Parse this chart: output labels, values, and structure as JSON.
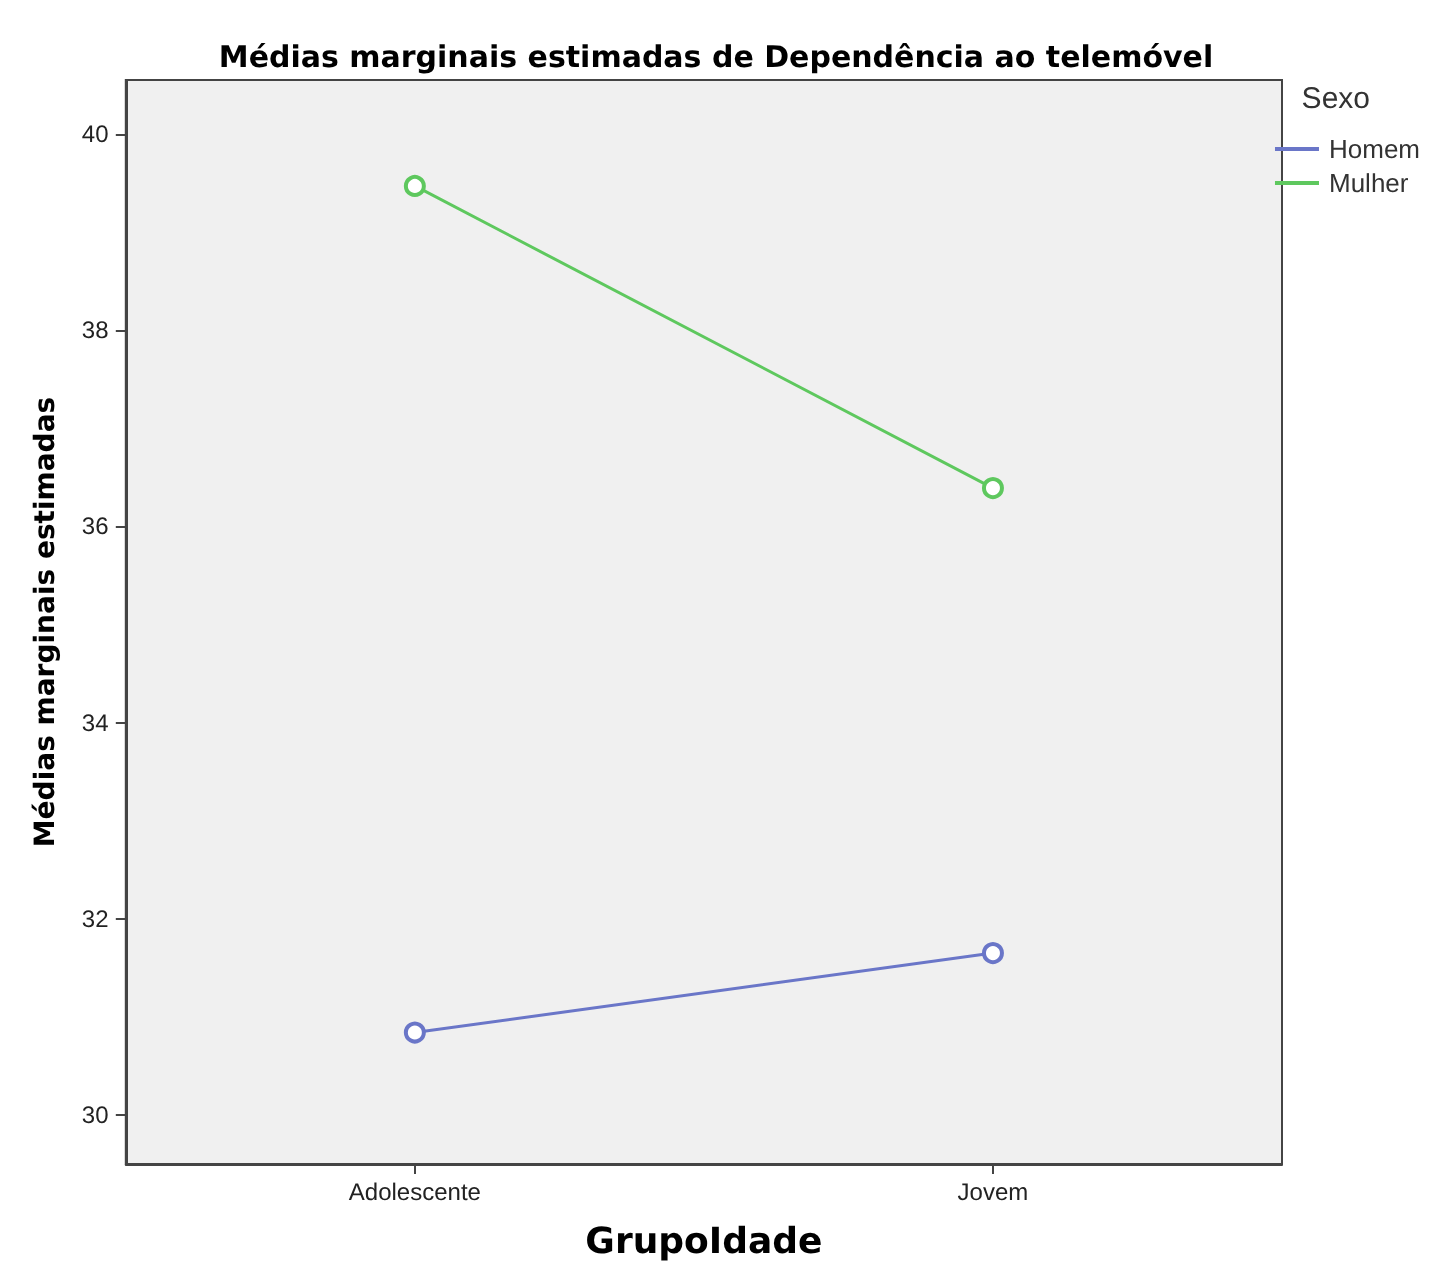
{
  "chart_data": {
    "type": "line",
    "title": "Médias marginais estimadas de Dependência ao telemóvel",
    "xlabel": "GrupoIdade",
    "ylabel": "Médias marginais estimadas",
    "legend_title": "Sexo",
    "categories": [
      "Adolescente",
      "Jovem"
    ],
    "series": [
      {
        "name": "Homem",
        "color": "#6a76c8",
        "values": [
          30.84,
          31.65
        ]
      },
      {
        "name": "Mulher",
        "color": "#5ec85e",
        "values": [
          39.47,
          36.39
        ]
      }
    ],
    "ylim": [
      29.5,
      40.55
    ],
    "yticks": [
      30,
      32,
      34,
      36,
      38,
      40
    ],
    "grid": false,
    "legend": "top right",
    "marker": "circle",
    "line_style": "solid"
  }
}
